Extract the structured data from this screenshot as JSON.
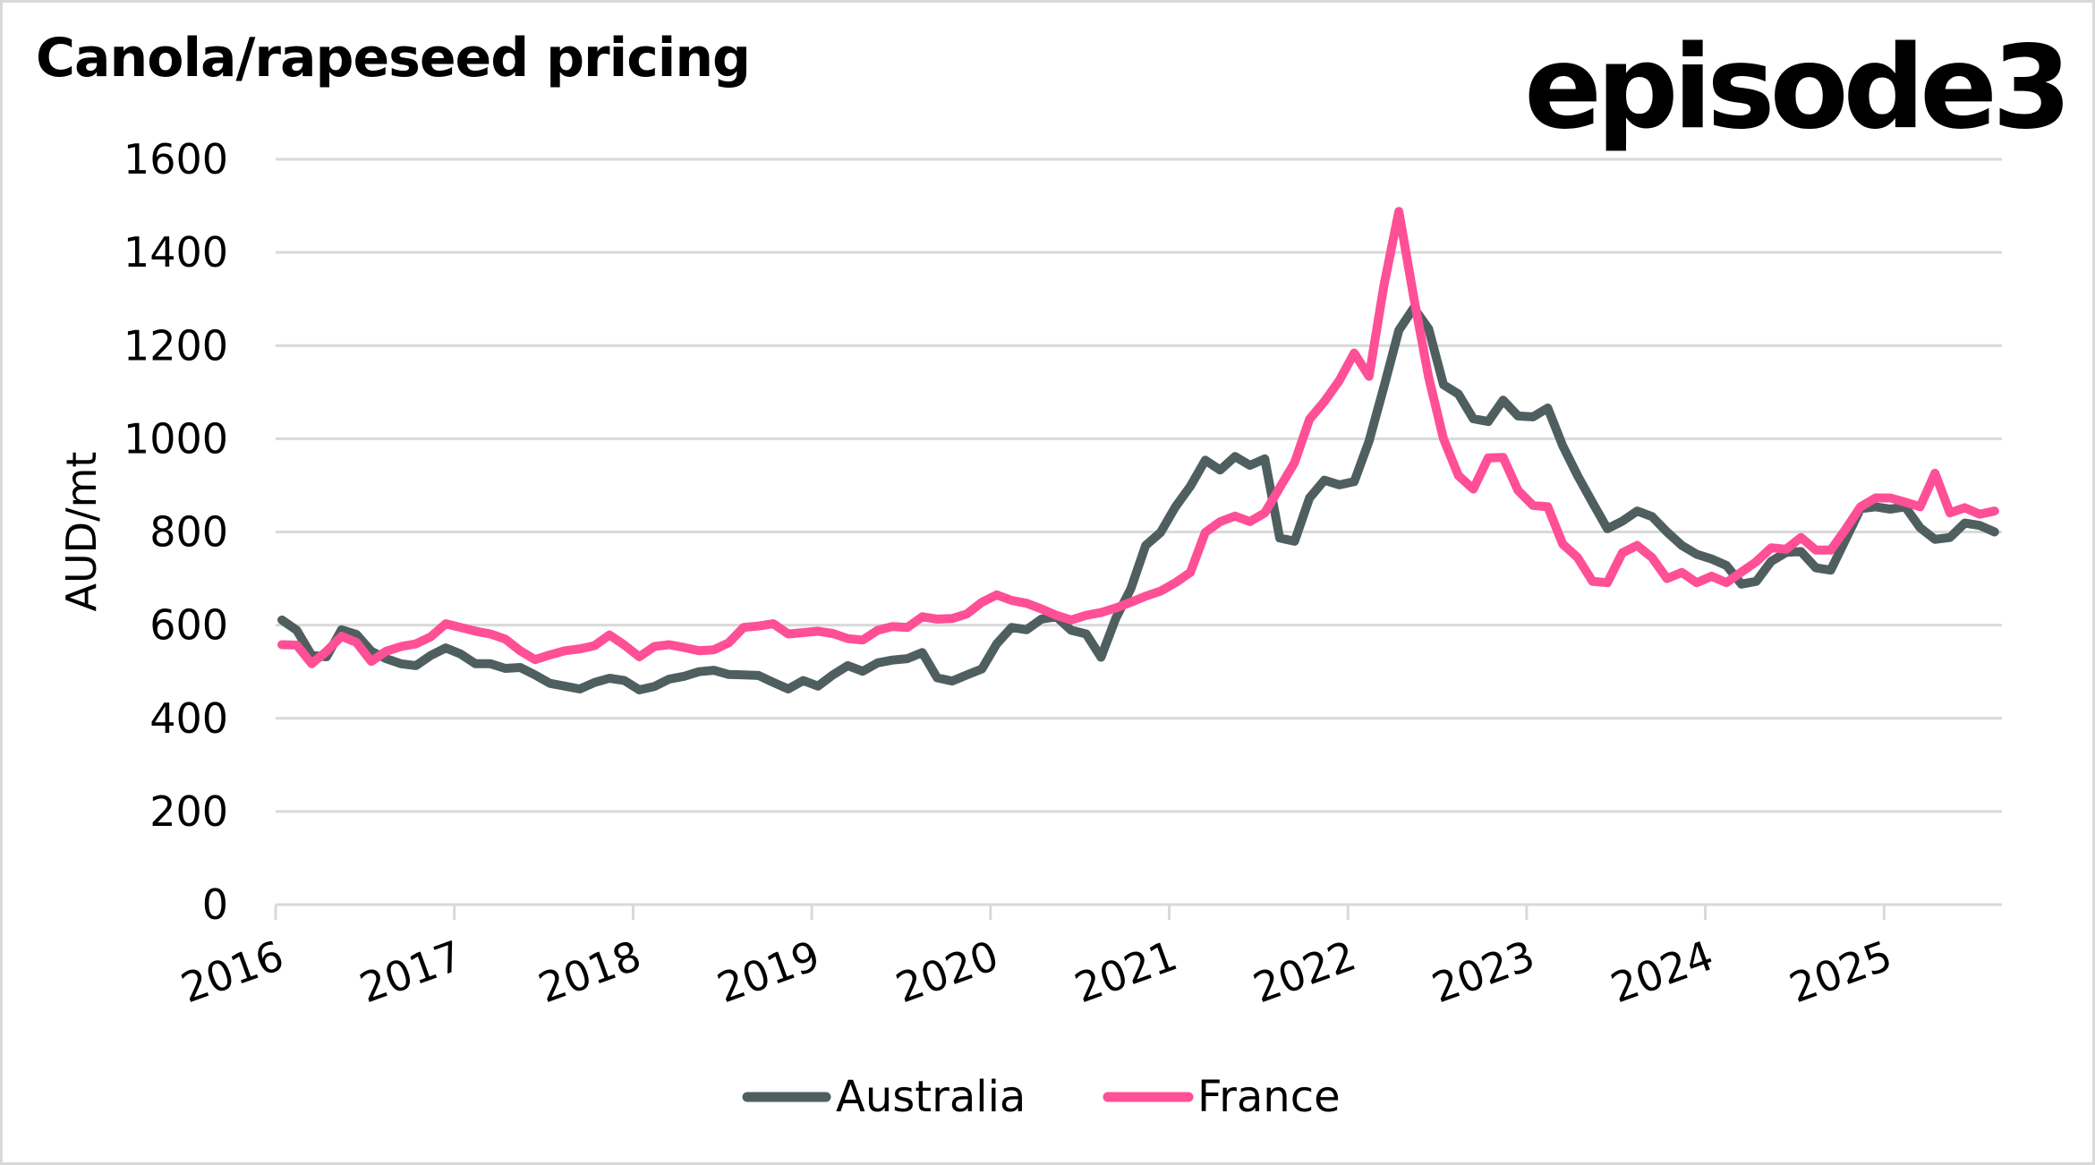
{
  "header": {
    "title": "Canola/rapeseed pricing",
    "logo_text": "episode3"
  },
  "chart_data": {
    "type": "line",
    "title": "Canola/rapeseed pricing",
    "xlabel": "",
    "ylabel": "AUD/mt",
    "ylim": [
      0,
      1600
    ],
    "yticks": [
      0,
      200,
      400,
      600,
      800,
      1000,
      1200,
      1400,
      1600
    ],
    "xlim": [
      2016,
      2025.67
    ],
    "xticks": [
      "2016",
      "2017",
      "2018",
      "2019",
      "2020",
      "2021",
      "2022",
      "2023",
      "2024",
      "2025"
    ],
    "frequency": "monthly",
    "start": "2016-01",
    "end": "2025-08",
    "grid": true,
    "legend_position": "bottom",
    "series": [
      {
        "name": "Australia",
        "color": "#4f5f5f",
        "values": [
          611,
          589,
          535,
          532,
          590,
          580,
          544,
          528,
          517,
          513,
          535,
          551,
          538,
          517,
          517,
          507,
          509,
          493,
          475,
          469,
          463,
          477,
          486,
          481,
          461,
          468,
          484,
          490,
          500,
          503,
          494,
          493,
          492,
          477,
          463,
          481,
          469,
          493,
          513,
          501,
          519,
          525,
          528,
          541,
          487,
          480,
          493,
          506,
          560,
          595,
          590,
          613,
          618,
          589,
          581,
          531,
          615,
          678,
          771,
          799,
          854,
          898,
          954,
          933,
          962,
          943,
          957,
          787,
          780,
          873,
          911,
          901,
          908,
          995,
          1112,
          1233,
          1281,
          1236,
          1116,
          1096,
          1043,
          1037,
          1083,
          1049,
          1047,
          1066,
          985,
          921,
          863,
          807,
          823,
          845,
          833,
          800,
          771,
          752,
          742,
          728,
          688,
          694,
          737,
          756,
          758,
          723,
          718,
          784,
          850,
          854,
          849,
          854,
          809,
          784,
          788,
          819,
          814,
          800
        ]
      },
      {
        "name": "France",
        "color": "#ff4f96",
        "values": [
          558,
          557,
          517,
          544,
          576,
          563,
          522,
          544,
          554,
          560,
          575,
          603,
          595,
          587,
          581,
          570,
          545,
          526,
          536,
          545,
          549,
          556,
          579,
          557,
          532,
          554,
          558,
          552,
          545,
          547,
          562,
          595,
          598,
          603,
          581,
          584,
          587,
          582,
          571,
          568,
          589,
          597,
          595,
          618,
          613,
          614,
          624,
          649,
          665,
          653,
          647,
          635,
          621,
          611,
          621,
          627,
          637,
          649,
          662,
          673,
          691,
          713,
          799,
          822,
          834,
          822,
          841,
          895,
          949,
          1042,
          1080,
          1125,
          1184,
          1134,
          1330,
          1488,
          1303,
          1132,
          1000,
          921,
          892,
          959,
          960,
          889,
          857,
          854,
          774,
          745,
          694,
          691,
          755,
          771,
          745,
          700,
          713,
          691,
          705,
          691,
          714,
          736,
          766,
          763,
          788,
          761,
          761,
          806,
          854,
          873,
          873,
          864,
          854,
          926,
          841,
          852,
          838,
          845
        ]
      }
    ]
  }
}
